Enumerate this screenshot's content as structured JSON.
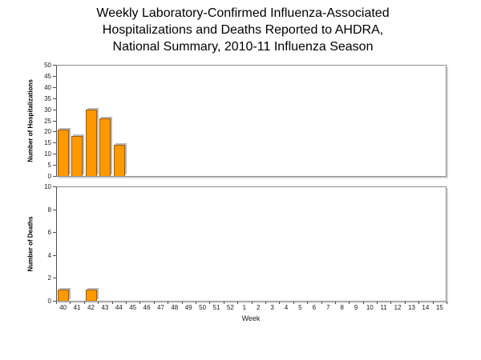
{
  "title": {
    "lines": [
      "Weekly Laboratory-Confirmed Influenza-Associated",
      "Hospitalizations and Deaths Reported to AHDRA,",
      "National Summary, 2010-11 Influenza Season"
    ]
  },
  "colors": {
    "bar_fill": "#FF9900",
    "bar_border": "#A25A00",
    "bar_shadow": "#B8B8B8",
    "plot_border": "#8C8C8C",
    "axis": "#4D4D4D",
    "text": "#000000"
  },
  "x_axis": {
    "label": "Week",
    "categories": [
      "40",
      "41",
      "42",
      "43",
      "44",
      "45",
      "46",
      "47",
      "48",
      "49",
      "50",
      "51",
      "52",
      "1",
      "2",
      "3",
      "4",
      "5",
      "6",
      "7",
      "8",
      "9",
      "10",
      "11",
      "12",
      "13",
      "14",
      "15"
    ]
  },
  "chart_data": [
    {
      "type": "bar",
      "ylabel": "Number of Hospitalizations",
      "ylim": [
        0,
        50
      ],
      "ytick_step": 5,
      "grid": false,
      "legend": "none",
      "categories": [
        "40",
        "41",
        "42",
        "43",
        "44",
        "45",
        "46",
        "47",
        "48",
        "49",
        "50",
        "51",
        "52",
        "1",
        "2",
        "3",
        "4",
        "5",
        "6",
        "7",
        "8",
        "9",
        "10",
        "11",
        "12",
        "13",
        "14",
        "15"
      ],
      "values": [
        21,
        18,
        30,
        26,
        14,
        0,
        0,
        0,
        0,
        0,
        0,
        0,
        0,
        0,
        0,
        0,
        0,
        0,
        0,
        0,
        0,
        0,
        0,
        0,
        0,
        0,
        0,
        0
      ]
    },
    {
      "type": "bar",
      "ylabel": "Number of Deaths",
      "ylim": [
        0,
        10
      ],
      "ytick_step": 2,
      "grid": false,
      "legend": "none",
      "categories": [
        "40",
        "41",
        "42",
        "43",
        "44",
        "45",
        "46",
        "47",
        "48",
        "49",
        "50",
        "51",
        "52",
        "1",
        "2",
        "3",
        "4",
        "5",
        "6",
        "7",
        "8",
        "9",
        "10",
        "11",
        "12",
        "13",
        "14",
        "15"
      ],
      "values": [
        1,
        0,
        1,
        0,
        0,
        0,
        0,
        0,
        0,
        0,
        0,
        0,
        0,
        0,
        0,
        0,
        0,
        0,
        0,
        0,
        0,
        0,
        0,
        0,
        0,
        0,
        0,
        0
      ]
    }
  ]
}
